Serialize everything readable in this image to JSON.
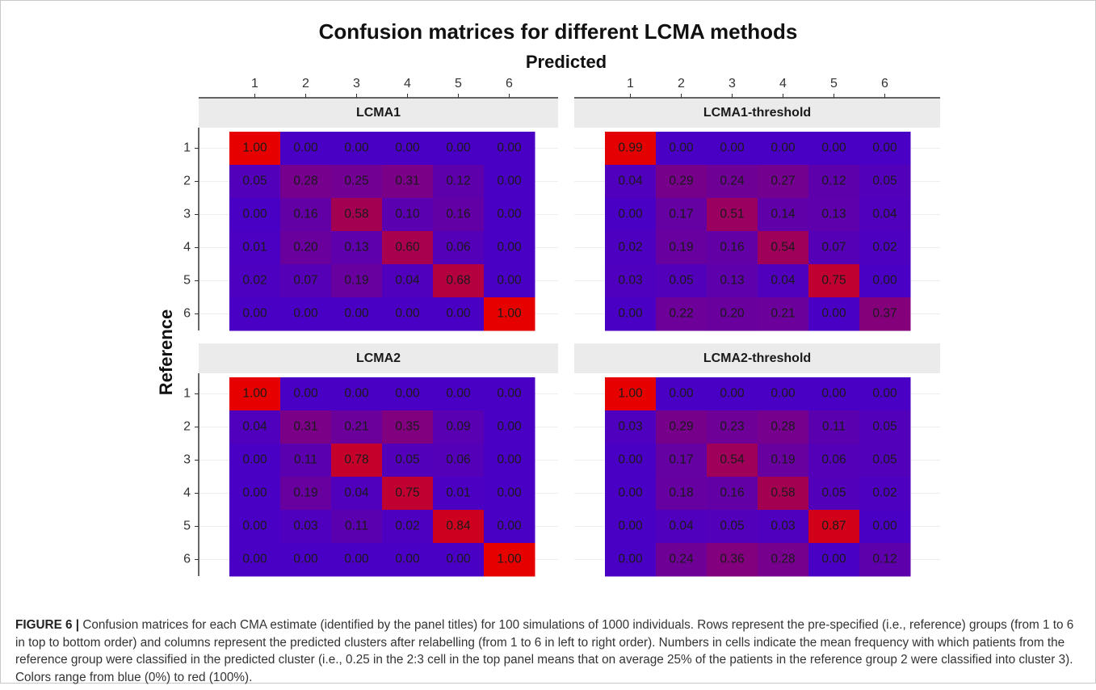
{
  "title": "Confusion matrices for different LCMA methods",
  "axes": {
    "x_label": "Predicted",
    "y_label": "Reference",
    "x_categories": [
      "1",
      "2",
      "3",
      "4",
      "5",
      "6"
    ],
    "y_categories": [
      "1",
      "2",
      "3",
      "4",
      "5",
      "6"
    ]
  },
  "chart_data": [
    {
      "type": "heatmap",
      "title": "LCMA1",
      "clim": [
        0,
        1
      ],
      "color_low": "#4a00c4",
      "color_high": "#e60000",
      "values": [
        [
          1,
          0,
          0,
          0,
          0,
          0
        ],
        [
          0.05,
          0.28,
          0.25,
          0.31,
          0.12,
          0
        ],
        [
          0,
          0.16,
          0.58,
          0.1,
          0.16,
          0
        ],
        [
          0.01,
          0.2,
          0.13,
          0.6,
          0.06,
          0
        ],
        [
          0.02,
          0.07,
          0.19,
          0.04,
          0.68,
          0
        ],
        [
          0,
          0,
          0,
          0,
          0,
          1
        ]
      ],
      "value_labels": [
        [
          "1.00",
          "0.00",
          "0.00",
          "0.00",
          "0.00",
          "0.00"
        ],
        [
          "0.05",
          "0.28",
          "0.25",
          "0.31",
          "0.12",
          "0.00"
        ],
        [
          "0.00",
          "0.16",
          "0.58",
          "0.10",
          "0.16",
          "0.00"
        ],
        [
          "0.01",
          "0.20",
          "0.13",
          "0.60",
          "0.06",
          "0.00"
        ],
        [
          "0.02",
          "0.07",
          "0.19",
          "0.04",
          "0.68",
          "0.00"
        ],
        [
          "0.00",
          "0.00",
          "0.00",
          "0.00",
          "0.00",
          "1.00"
        ]
      ]
    },
    {
      "type": "heatmap",
      "title": "LCMA1-threshold",
      "clim": [
        0,
        1
      ],
      "color_low": "#4a00c4",
      "color_high": "#e60000",
      "values": [
        [
          0.99,
          0,
          0,
          0,
          0,
          0
        ],
        [
          0.04,
          0.29,
          0.24,
          0.27,
          0.12,
          0.05
        ],
        [
          0,
          0.17,
          0.51,
          0.14,
          0.13,
          0.04
        ],
        [
          0.02,
          0.19,
          0.16,
          0.54,
          0.07,
          0.02
        ],
        [
          0.03,
          0.05,
          0.13,
          0.04,
          0.75,
          0
        ],
        [
          0,
          0.22,
          0.2,
          0.21,
          0,
          0.37
        ]
      ],
      "value_labels": [
        [
          "0.99",
          "0.00",
          "0.00",
          "0.00",
          "0.00",
          "0.00"
        ],
        [
          "0.04",
          "0.29",
          "0.24",
          "0.27",
          "0.12",
          "0.05"
        ],
        [
          "0.00",
          "0.17",
          "0.51",
          "0.14",
          "0.13",
          "0.04"
        ],
        [
          "0.02",
          "0.19",
          "0.16",
          "0.54",
          "0.07",
          "0.02"
        ],
        [
          "0.03",
          "0.05",
          "0.13",
          "0.04",
          "0.75",
          "0.00"
        ],
        [
          "0.00",
          "0.22",
          "0.20",
          "0.21",
          "0.00",
          "0.37"
        ]
      ]
    },
    {
      "type": "heatmap",
      "title": "LCMA2",
      "clim": [
        0,
        1
      ],
      "color_low": "#4a00c4",
      "color_high": "#e60000",
      "values": [
        [
          1,
          0,
          0,
          0,
          0,
          0
        ],
        [
          0.04,
          0.31,
          0.21,
          0.35,
          0.09,
          0
        ],
        [
          0,
          0.11,
          0.78,
          0.05,
          0.06,
          0
        ],
        [
          0,
          0.19,
          0.04,
          0.75,
          0.01,
          0
        ],
        [
          0,
          0.03,
          0.11,
          0.02,
          0.84,
          0
        ],
        [
          0,
          0,
          0,
          0,
          0,
          1
        ]
      ],
      "value_labels": [
        [
          "1.00",
          "0.00",
          "0.00",
          "0.00",
          "0.00",
          "0.00"
        ],
        [
          "0.04",
          "0.31",
          "0.21",
          "0.35",
          "0.09",
          "0.00"
        ],
        [
          "0.00",
          "0.11",
          "0.78",
          "0.05",
          "0.06",
          "0.00"
        ],
        [
          "0.00",
          "0.19",
          "0.04",
          "0.75",
          "0.01",
          "0.00"
        ],
        [
          "0.00",
          "0.03",
          "0.11",
          "0.02",
          "0.84",
          "0.00"
        ],
        [
          "0.00",
          "0.00",
          "0.00",
          "0.00",
          "0.00",
          "1.00"
        ]
      ]
    },
    {
      "type": "heatmap",
      "title": "LCMA2-threshold",
      "clim": [
        0,
        1
      ],
      "color_low": "#4a00c4",
      "color_high": "#e60000",
      "values": [
        [
          1,
          0,
          0,
          0,
          0,
          0
        ],
        [
          0.03,
          0.29,
          0.23,
          0.28,
          0.11,
          0.05
        ],
        [
          0,
          0.17,
          0.54,
          0.19,
          0.06,
          0.05
        ],
        [
          0,
          0.18,
          0.16,
          0.58,
          0.05,
          0.02
        ],
        [
          0,
          0.04,
          0.05,
          0.03,
          0.87,
          0
        ],
        [
          0,
          0.24,
          0.36,
          0.28,
          0,
          0.12
        ]
      ],
      "value_labels": [
        [
          "1.00",
          "0.00",
          "0.00",
          "0.00",
          "0.00",
          "0.00"
        ],
        [
          "0.03",
          "0.29",
          "0.23",
          "0.28",
          "0.11",
          "0.05"
        ],
        [
          "0.00",
          "0.17",
          "0.54",
          "0.19",
          "0.06",
          "0.05"
        ],
        [
          "0.00",
          "0.18",
          "0.16",
          "0.58",
          "0.05",
          "0.02"
        ],
        [
          "0.00",
          "0.04",
          "0.05",
          "0.03",
          "0.87",
          "0.00"
        ],
        [
          "0.00",
          "0.24",
          "0.36",
          "0.28",
          "0.00",
          "0.12"
        ]
      ]
    }
  ],
  "caption": {
    "label": "FIGURE 6 |",
    "text": "Confusion matrices for each CMA estimate (identified by the panel titles) for 100 simulations of 1000 individuals. Rows represent the pre-specified (i.e., reference) groups (from 1 to 6 in top to bottom order) and columns represent the predicted clusters after relabelling (from 1 to 6 in left to right order). Numbers in cells indicate the mean frequency with which patients from the reference group were classified in the predicted cluster (i.e., 0.25 in the 2:3 cell in the top panel means that on average 25% of the patients in the reference group 2 were classified into cluster 3). Colors range from blue (0%) to red (100%)."
  }
}
